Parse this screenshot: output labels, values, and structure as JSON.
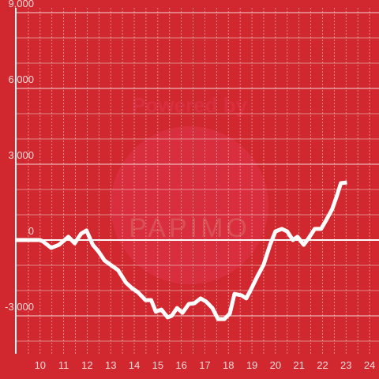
{
  "chart_data": {
    "type": "line",
    "watermark": [
      "Powered by",
      "PAPIMO"
    ],
    "x": [
      9.0,
      9.5,
      10.0,
      10.13,
      10.47,
      10.8,
      11.2,
      11.47,
      11.74,
      11.97,
      12.24,
      12.47,
      12.74,
      12.98,
      13.31,
      13.65,
      13.91,
      14.15,
      14.48,
      14.72,
      14.92,
      15.15,
      15.42,
      15.59,
      15.82,
      16.05,
      16.32,
      16.56,
      16.82,
      17.06,
      17.32,
      17.56,
      17.83,
      18.06,
      18.26,
      18.56,
      18.76,
      19.0,
      19.23,
      19.5,
      19.77,
      20.0,
      20.27,
      20.5,
      20.74,
      20.94,
      21.2,
      21.4,
      21.67,
      21.94,
      22.17,
      22.41,
      22.61,
      22.78,
      23.04
    ],
    "series": [
      {
        "color": "#ffffff",
        "values": [
          0,
          0,
          0,
          -60,
          -310,
          -190,
          130,
          -130,
          250,
          380,
          -190,
          -440,
          -810,
          -970,
          -1190,
          -1690,
          -1910,
          -2060,
          -2380,
          -2380,
          -2840,
          -2750,
          -3060,
          -3000,
          -2690,
          -2880,
          -2530,
          -2500,
          -2310,
          -2440,
          -2690,
          -3130,
          -3130,
          -2910,
          -2130,
          -2190,
          -2310,
          -1880,
          -1440,
          -970,
          -190,
          340,
          440,
          340,
          0,
          130,
          -190,
          60,
          440,
          440,
          810,
          1220,
          1750,
          2250,
          2280
        ]
      }
    ],
    "xlim": [
      9,
      24.4
    ],
    "xticks": [
      10,
      11,
      12,
      13,
      14,
      15,
      16,
      17,
      18,
      19,
      20,
      21,
      22,
      23,
      24
    ],
    "xgrid_step": 0.5,
    "ylim": [
      -4500,
      9000
    ],
    "yticks": [
      {
        "value": -3000,
        "label": "-3,000"
      },
      0,
      {
        "value": 3000,
        "label": "3,000"
      },
      {
        "value": 6000,
        "label": "6,000"
      },
      {
        "value": 9000,
        "label": "9,000"
      }
    ],
    "ygrid": [
      -4000,
      -2000,
      -1000,
      1000,
      2000,
      4000,
      5000,
      7000,
      8000
    ],
    "grid": true
  }
}
